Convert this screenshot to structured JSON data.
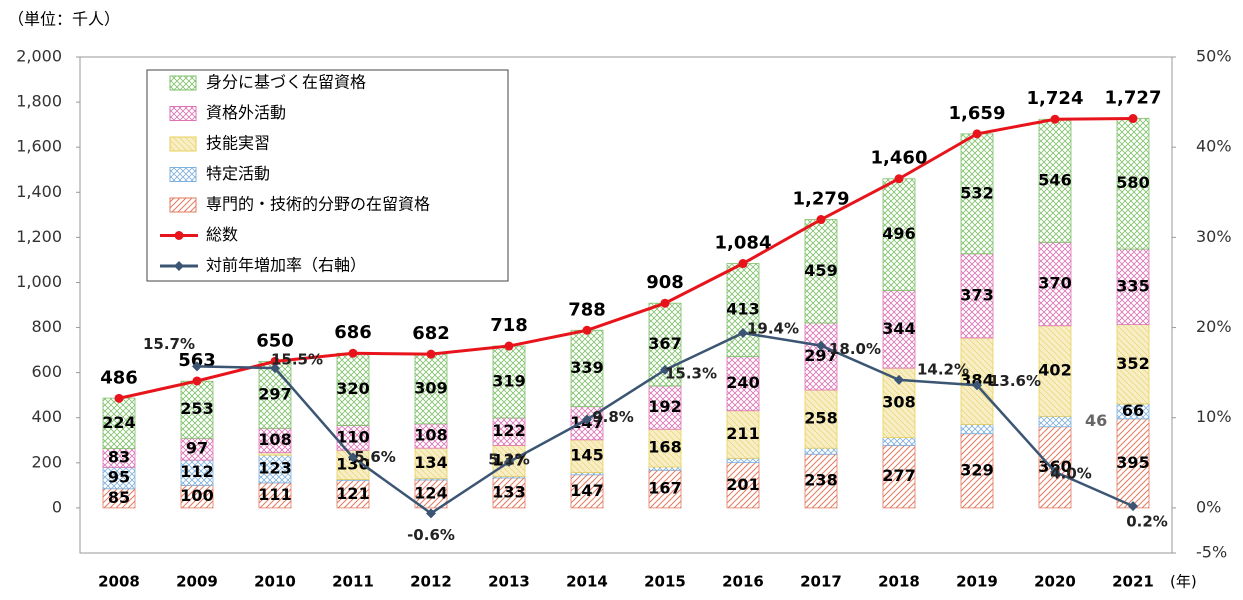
{
  "chart_data": {
    "type": "bar",
    "title": "（単位：千人）",
    "x_unit": "(年)",
    "categories": [
      "2008",
      "2009",
      "2010",
      "2011",
      "2012",
      "2013",
      "2014",
      "2015",
      "2016",
      "2017",
      "2018",
      "2019",
      "2020",
      "2021"
    ],
    "series": [
      {
        "name": "専門的・技術的分野の在留資格",
        "color": "#e2795f",
        "values": [
          85,
          100,
          111,
          121,
          124,
          133,
          147,
          167,
          201,
          238,
          277,
          329,
          360,
          395
        ]
      },
      {
        "name": "特定活動",
        "color": "#7fb0dc",
        "values": [
          95,
          112,
          123,
          5,
          7,
          7,
          10,
          14,
          19,
          27,
          35,
          41,
          46,
          66
        ],
        "value_labels": [
          "95",
          "112",
          "123",
          null,
          null,
          null,
          null,
          null,
          null,
          null,
          null,
          null,
          "46",
          "66"
        ]
      },
      {
        "name": "技能実習",
        "color": "#e8cf5a",
        "values": [
          null,
          null,
          11,
          130,
          134,
          137,
          145,
          168,
          211,
          258,
          308,
          384,
          402,
          352
        ],
        "value_labels": [
          null,
          null,
          null,
          "130",
          "134",
          "137",
          "145",
          "168",
          "211",
          "258",
          "308",
          "384",
          "402",
          "352"
        ]
      },
      {
        "name": "資格外活動",
        "color": "#dd72b4",
        "values": [
          83,
          97,
          108,
          110,
          108,
          122,
          147,
          192,
          240,
          297,
          344,
          373,
          370,
          335
        ]
      },
      {
        "name": "身分に基づく在留資格",
        "color": "#7fc06a",
        "values": [
          224,
          253,
          297,
          320,
          309,
          319,
          339,
          367,
          413,
          459,
          496,
          532,
          546,
          580
        ]
      },
      {
        "name": "総数",
        "type": "line",
        "color": "#e8141c",
        "values": [
          486,
          563,
          650,
          686,
          682,
          718,
          788,
          908,
          1084,
          1279,
          1460,
          1659,
          1724,
          1727
        ],
        "value_labels": [
          "486",
          "563",
          "650",
          "686",
          "682",
          "718",
          "788",
          "908",
          "1,084",
          "1,279",
          "1,460",
          "1,659",
          "1,724",
          "1,727"
        ]
      },
      {
        "name": "対前年増加率（右軸）",
        "type": "line",
        "axis": "y2",
        "color": "#3b5573",
        "values": [
          null,
          15.7,
          15.5,
          5.6,
          -0.6,
          5.1,
          9.8,
          15.3,
          19.4,
          18.0,
          14.2,
          13.6,
          4.0,
          0.2
        ],
        "value_labels": [
          null,
          "15.7%",
          "15.5%",
          "5.6%",
          "-0.6%",
          "5.1%",
          "9.8%",
          "15.3%",
          "19.4%",
          "18.0%",
          "14.2%",
          "13.6%",
          "4.0%",
          "0.2%"
        ]
      }
    ],
    "ylim": [
      -200,
      2000
    ],
    "yticks": [
      0,
      200,
      400,
      600,
      800,
      {
        "value": 1000,
        "label": "1,000"
      },
      {
        "value": 1200,
        "label": "1,200"
      },
      {
        "value": 1400,
        "label": "1,400"
      },
      {
        "value": 1600,
        "label": "1,600"
      },
      {
        "value": 1800,
        "label": "1,800"
      },
      {
        "value": 2000,
        "label": "2,000"
      }
    ],
    "y2lim": [
      -5,
      50
    ],
    "y2ticks": [
      {
        "value": -5,
        "label": "-5%"
      },
      {
        "value": 0,
        "label": "0%"
      },
      {
        "value": 10,
        "label": "10%"
      },
      {
        "value": 20,
        "label": "20%"
      },
      {
        "value": 30,
        "label": "30%"
      },
      {
        "value": 40,
        "label": "40%"
      },
      {
        "value": 50,
        "label": "50%"
      }
    ],
    "legend": "upper left"
  }
}
